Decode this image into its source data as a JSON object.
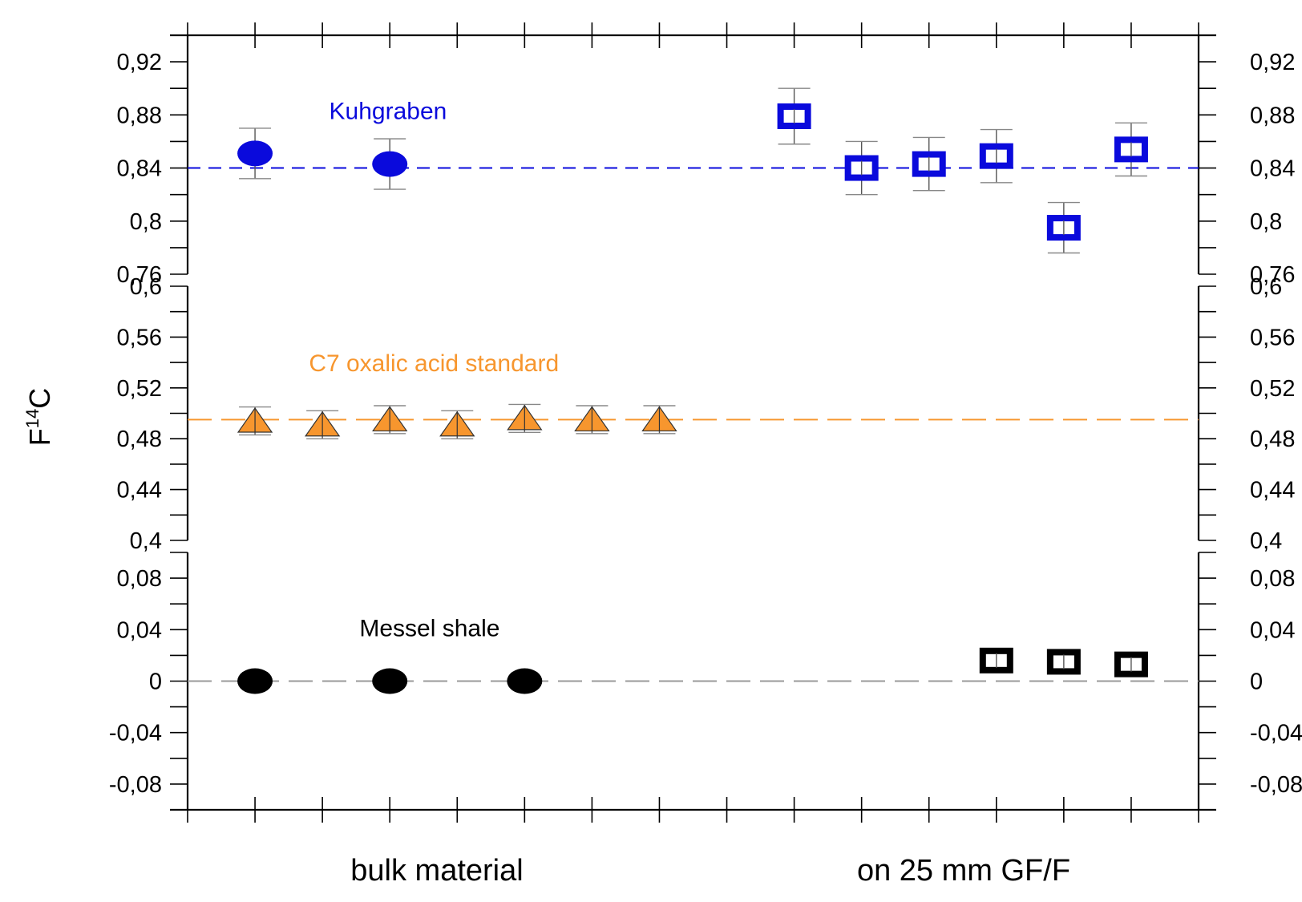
{
  "chart_data": {
    "type": "scatter",
    "ylabel": {
      "base": "F",
      "sup": "14",
      "tail": "C"
    },
    "bottom_labels": [
      "bulk material",
      "on 25 mm GF/F"
    ],
    "x_slots": 15,
    "colors": {
      "blue": "#0a0adc",
      "orange": "#f7962e",
      "black": "#000000",
      "gray": "#9a9a9a"
    },
    "panels": [
      {
        "name": "Kuhgraben",
        "ylim": [
          0.76,
          0.94
        ],
        "ticks": [
          0.76,
          0.8,
          0.84,
          0.88,
          0.92
        ],
        "tick_labels": [
          "0,76",
          "0,8",
          "0,84",
          "0,88",
          "0,92"
        ],
        "reference_line": 0.84,
        "line_color": "#0a0adc",
        "annotation": "Kuhgraben",
        "annotation_color": "#0a0adc",
        "annotation_at": {
          "x": 2.1,
          "y": 0.877
        },
        "series": [
          {
            "name": "bulk material",
            "marker": "circle",
            "color": "#0a0adc",
            "x": [
              1,
              3
            ],
            "y": [
              0.851,
              0.843
            ],
            "err": [
              0.019,
              0.019
            ]
          },
          {
            "name": "on 25 mm GF/F",
            "marker": "square-open",
            "color": "#0a0adc",
            "x": [
              9,
              10,
              11,
              12,
              13,
              14
            ],
            "y": [
              0.879,
              0.84,
              0.843,
              0.849,
              0.795,
              0.854
            ],
            "err": [
              0.021,
              0.02,
              0.02,
              0.02,
              0.019,
              0.02
            ]
          }
        ]
      },
      {
        "name": "C7 oxalic acid standard",
        "ylim": [
          0.4,
          0.6
        ],
        "ticks": [
          0.4,
          0.44,
          0.48,
          0.52,
          0.56,
          0.6
        ],
        "tick_labels": [
          "0,4",
          "0,44",
          "0,48",
          "0,52",
          "0,56",
          "0,6"
        ],
        "reference_line": 0.495,
        "line_color": "#f7962e",
        "annotation": "C7 oxalic acid standard",
        "annotation_color": "#f7962e",
        "annotation_at": {
          "x": 1.8,
          "y": 0.533
        },
        "series": [
          {
            "name": "bulk material",
            "marker": "triangle",
            "color": "#f7962e",
            "x": [
              1,
              2,
              3,
              4,
              5,
              6,
              7
            ],
            "y": [
              0.494,
              0.491,
              0.495,
              0.491,
              0.496,
              0.495,
              0.495
            ],
            "err": [
              0.011,
              0.011,
              0.011,
              0.011,
              0.011,
              0.011,
              0.011
            ]
          }
        ]
      },
      {
        "name": "Messel shale",
        "ylim": [
          -0.1,
          0.1
        ],
        "ticks": [
          -0.08,
          -0.04,
          0,
          0.04,
          0.08
        ],
        "tick_labels": [
          "-0,08",
          "-0,04",
          "0",
          "0,04",
          "0,08"
        ],
        "reference_line": 0,
        "line_color": "#9a9a9a",
        "annotation": "Messel shale",
        "annotation_color": "#000000",
        "annotation_at": {
          "x": 2.55,
          "y": 0.035
        },
        "series": [
          {
            "name": "bulk material",
            "marker": "circle",
            "color": "#000000",
            "x": [
              1,
              3,
              5
            ],
            "y": [
              0,
              0,
              0
            ],
            "err": [
              0,
              0,
              0
            ]
          },
          {
            "name": "on 25 mm GF/F",
            "marker": "square-open",
            "color": "#000000",
            "x": [
              12,
              13,
              14
            ],
            "y": [
              0.016,
              0.015,
              0.013
            ],
            "err": [
              0.003,
              0.003,
              0.003
            ]
          }
        ]
      }
    ]
  }
}
